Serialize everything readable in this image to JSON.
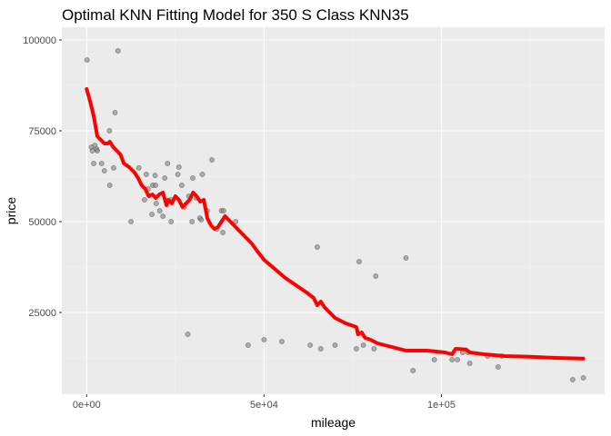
{
  "chart_data": {
    "type": "scatter",
    "title": "Optimal KNN Fitting Model for 350 S Class KNN35",
    "xlabel": "mileage",
    "ylabel": "price",
    "xlim": [
      -7000,
      146000
    ],
    "ylim": [
      2500,
      103500
    ],
    "x_ticks": [
      {
        "value": 0,
        "label": "0e+00"
      },
      {
        "value": 50000,
        "label": "5e+04"
      },
      {
        "value": 100000,
        "label": "1e+05"
      }
    ],
    "y_ticks": [
      {
        "value": 25000,
        "label": "25000"
      },
      {
        "value": 50000,
        "label": "50000"
      },
      {
        "value": 75000,
        "label": "75000"
      },
      {
        "value": 100000,
        "label": "100000"
      }
    ],
    "grid": true,
    "legend": "none",
    "colors": {
      "panel_bg": "#ebebeb",
      "grid_major": "#ffffff",
      "grid_minor": "#f5f5f5",
      "points": "#808080",
      "fit_line": "#ff0000"
    },
    "series": [
      {
        "type": "scatter",
        "points": [
          [
            100,
            94500
          ],
          [
            1300,
            70500
          ],
          [
            1600,
            69500
          ],
          [
            2000,
            66000
          ],
          [
            2300,
            71000
          ],
          [
            2800,
            70000
          ],
          [
            3000,
            69500
          ],
          [
            4200,
            66000
          ],
          [
            5000,
            64000
          ],
          [
            6400,
            75000
          ],
          [
            6500,
            60000
          ],
          [
            7600,
            64800
          ],
          [
            8000,
            80000
          ],
          [
            8800,
            97000
          ],
          [
            12500,
            50000
          ],
          [
            14700,
            64800
          ],
          [
            16300,
            56000
          ],
          [
            16800,
            63000
          ],
          [
            17300,
            59000
          ],
          [
            18600,
            60000
          ],
          [
            18400,
            52000
          ],
          [
            19400,
            60000
          ],
          [
            19600,
            55000
          ],
          [
            19300,
            62700
          ],
          [
            20600,
            53000
          ],
          [
            21500,
            51500
          ],
          [
            22000,
            62000
          ],
          [
            22800,
            66000
          ],
          [
            23700,
            56000
          ],
          [
            23800,
            50000
          ],
          [
            25700,
            63000
          ],
          [
            26000,
            65000
          ],
          [
            26800,
            60000
          ],
          [
            27500,
            54000
          ],
          [
            28500,
            19000
          ],
          [
            28800,
            57000
          ],
          [
            29700,
            50000
          ],
          [
            29900,
            62000
          ],
          [
            30900,
            56500
          ],
          [
            31900,
            51000
          ],
          [
            32300,
            50500
          ],
          [
            32600,
            63000
          ],
          [
            34000,
            53000
          ],
          [
            35300,
            67000
          ],
          [
            36700,
            48000
          ],
          [
            38000,
            53000
          ],
          [
            38400,
            47000
          ],
          [
            38600,
            53000
          ],
          [
            42000,
            50000
          ],
          [
            45500,
            16000
          ],
          [
            50000,
            17500
          ],
          [
            55000,
            17000
          ],
          [
            63000,
            16000
          ],
          [
            65000,
            43000
          ],
          [
            66000,
            15000
          ],
          [
            70000,
            16000
          ],
          [
            76000,
            15000
          ],
          [
            76800,
            39000
          ],
          [
            78000,
            16000
          ],
          [
            81000,
            15000
          ],
          [
            81500,
            35000
          ],
          [
            90000,
            40000
          ],
          [
            92000,
            9000
          ],
          [
            98000,
            12000
          ],
          [
            103000,
            12000
          ],
          [
            104500,
            12000
          ],
          [
            106000,
            14000
          ],
          [
            107500,
            14000
          ],
          [
            108000,
            11000
          ],
          [
            113000,
            13000
          ],
          [
            116000,
            10000
          ],
          [
            117000,
            13000
          ],
          [
            137000,
            6500
          ],
          [
            140000,
            7000
          ]
        ]
      },
      {
        "type": "line",
        "points": [
          [
            0,
            86500
          ],
          [
            1000,
            83000
          ],
          [
            2000,
            79000
          ],
          [
            3000,
            73500
          ],
          [
            4000,
            72500
          ],
          [
            5000,
            71500
          ],
          [
            6000,
            71500
          ],
          [
            6500,
            72000
          ],
          [
            7500,
            70500
          ],
          [
            8500,
            69500
          ],
          [
            9500,
            68500
          ],
          [
            10500,
            66000
          ],
          [
            12000,
            65000
          ],
          [
            13500,
            63500
          ],
          [
            14500,
            62000
          ],
          [
            15500,
            60000
          ],
          [
            16500,
            59000
          ],
          [
            17500,
            57000
          ],
          [
            18500,
            57500
          ],
          [
            19500,
            56500
          ],
          [
            20500,
            57500
          ],
          [
            21500,
            58000
          ],
          [
            22500,
            54500
          ],
          [
            23000,
            56000
          ],
          [
            24000,
            55000
          ],
          [
            25000,
            57000
          ],
          [
            26000,
            56000
          ],
          [
            27000,
            54000
          ],
          [
            28000,
            55000
          ],
          [
            29000,
            56000
          ],
          [
            30000,
            58000
          ],
          [
            31000,
            57000
          ],
          [
            32000,
            55500
          ],
          [
            33000,
            56000
          ],
          [
            34000,
            51000
          ],
          [
            35000,
            49000
          ],
          [
            36000,
            48000
          ],
          [
            37000,
            48500
          ],
          [
            38000,
            50000
          ],
          [
            39000,
            51500
          ],
          [
            40000,
            50500
          ],
          [
            42000,
            48500
          ],
          [
            44000,
            46500
          ],
          [
            46500,
            44000
          ],
          [
            48000,
            42000
          ],
          [
            50000,
            39500
          ],
          [
            53000,
            37000
          ],
          [
            56000,
            34500
          ],
          [
            59000,
            32500
          ],
          [
            62000,
            30500
          ],
          [
            64000,
            29000
          ],
          [
            65000,
            27000
          ],
          [
            66000,
            28000
          ],
          [
            67000,
            26500
          ],
          [
            68000,
            25500
          ],
          [
            70000,
            23500
          ],
          [
            73000,
            22000
          ],
          [
            76000,
            21000
          ],
          [
            76500,
            19000
          ],
          [
            77500,
            19500
          ],
          [
            78500,
            18000
          ],
          [
            80000,
            17500
          ],
          [
            82000,
            16500
          ],
          [
            86000,
            15500
          ],
          [
            90000,
            14500
          ],
          [
            96000,
            14500
          ],
          [
            101000,
            14000
          ],
          [
            103000,
            13500
          ],
          [
            104000,
            15000
          ],
          [
            107000,
            14800
          ],
          [
            108000,
            14000
          ],
          [
            112000,
            13500
          ],
          [
            118000,
            13000
          ],
          [
            125000,
            12800
          ],
          [
            132000,
            12500
          ],
          [
            140000,
            12300
          ]
        ]
      }
    ]
  }
}
